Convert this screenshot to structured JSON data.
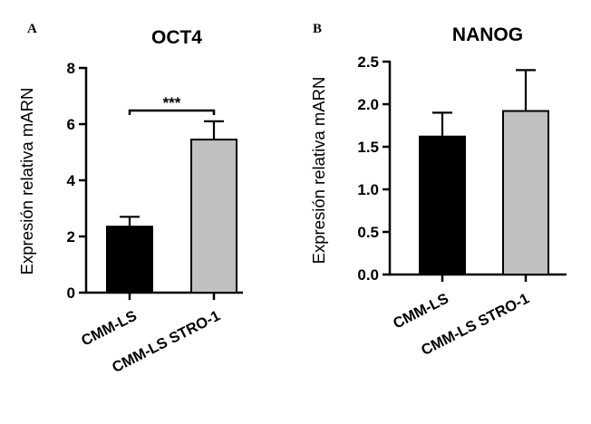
{
  "chart_data": [
    {
      "type": "bar",
      "panel": "A",
      "title": "OCT4",
      "ylabel": "Expresión relativa mARN",
      "xlabel": "",
      "ylim": [
        0,
        8
      ],
      "yticks": [
        0,
        2,
        4,
        6,
        8
      ],
      "ytick_labels": [
        "0",
        "2",
        "4",
        "6",
        "8"
      ],
      "categories": [
        "CMM-LS",
        "CMM-LS STRO-1"
      ],
      "values": [
        2.35,
        5.45
      ],
      "errors": [
        0.35,
        0.65
      ],
      "colors": [
        "#000000",
        "#c0c0c0"
      ],
      "significance": "***",
      "grid": false
    },
    {
      "type": "bar",
      "panel": "B",
      "title": "NANOG",
      "ylabel": "Expresión relativa mARN",
      "xlabel": "",
      "ylim": [
        0,
        2.5
      ],
      "yticks": [
        0,
        0.5,
        1,
        1.5,
        2,
        2.5
      ],
      "ytick_labels": [
        "0.0",
        "0.5",
        "1.0",
        "1.5",
        "2.0",
        "2.5"
      ],
      "categories": [
        "CMM-LS",
        "CMM-LS STRO-1"
      ],
      "values": [
        1.62,
        1.92
      ],
      "errors": [
        0.28,
        0.48
      ],
      "colors": [
        "#000000",
        "#c0c0c0"
      ],
      "grid": false
    }
  ]
}
